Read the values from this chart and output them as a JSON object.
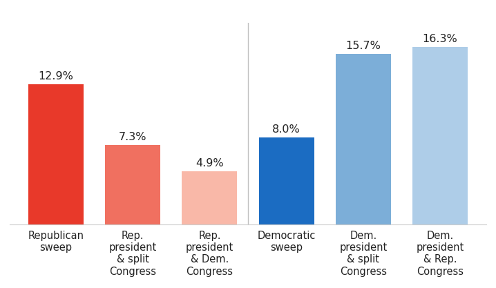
{
  "categories": [
    "Republican\nsweep",
    "Rep.\npresident\n& split\nCongress",
    "Rep.\npresident\n& Dem.\nCongress",
    "Democratic\nsweep",
    "Dem.\npresident\n& split\nCongress",
    "Dem.\npresident\n& Rep.\nCongress"
  ],
  "values": [
    12.9,
    7.3,
    4.9,
    8.0,
    15.7,
    16.3
  ],
  "bar_colors": [
    "#E8392A",
    "#F07060",
    "#F9B8A8",
    "#1B6CC2",
    "#7CAED8",
    "#AECDE8"
  ],
  "value_labels": [
    "12.9%",
    "7.3%",
    "4.9%",
    "8.0%",
    "15.7%",
    "16.3%"
  ],
  "ylim": [
    0,
    18.5
  ],
  "background_color": "#ffffff",
  "bar_width": 0.72,
  "label_fontsize": 10.5,
  "value_fontsize": 11.5,
  "divider_color": "#c0c0c0"
}
